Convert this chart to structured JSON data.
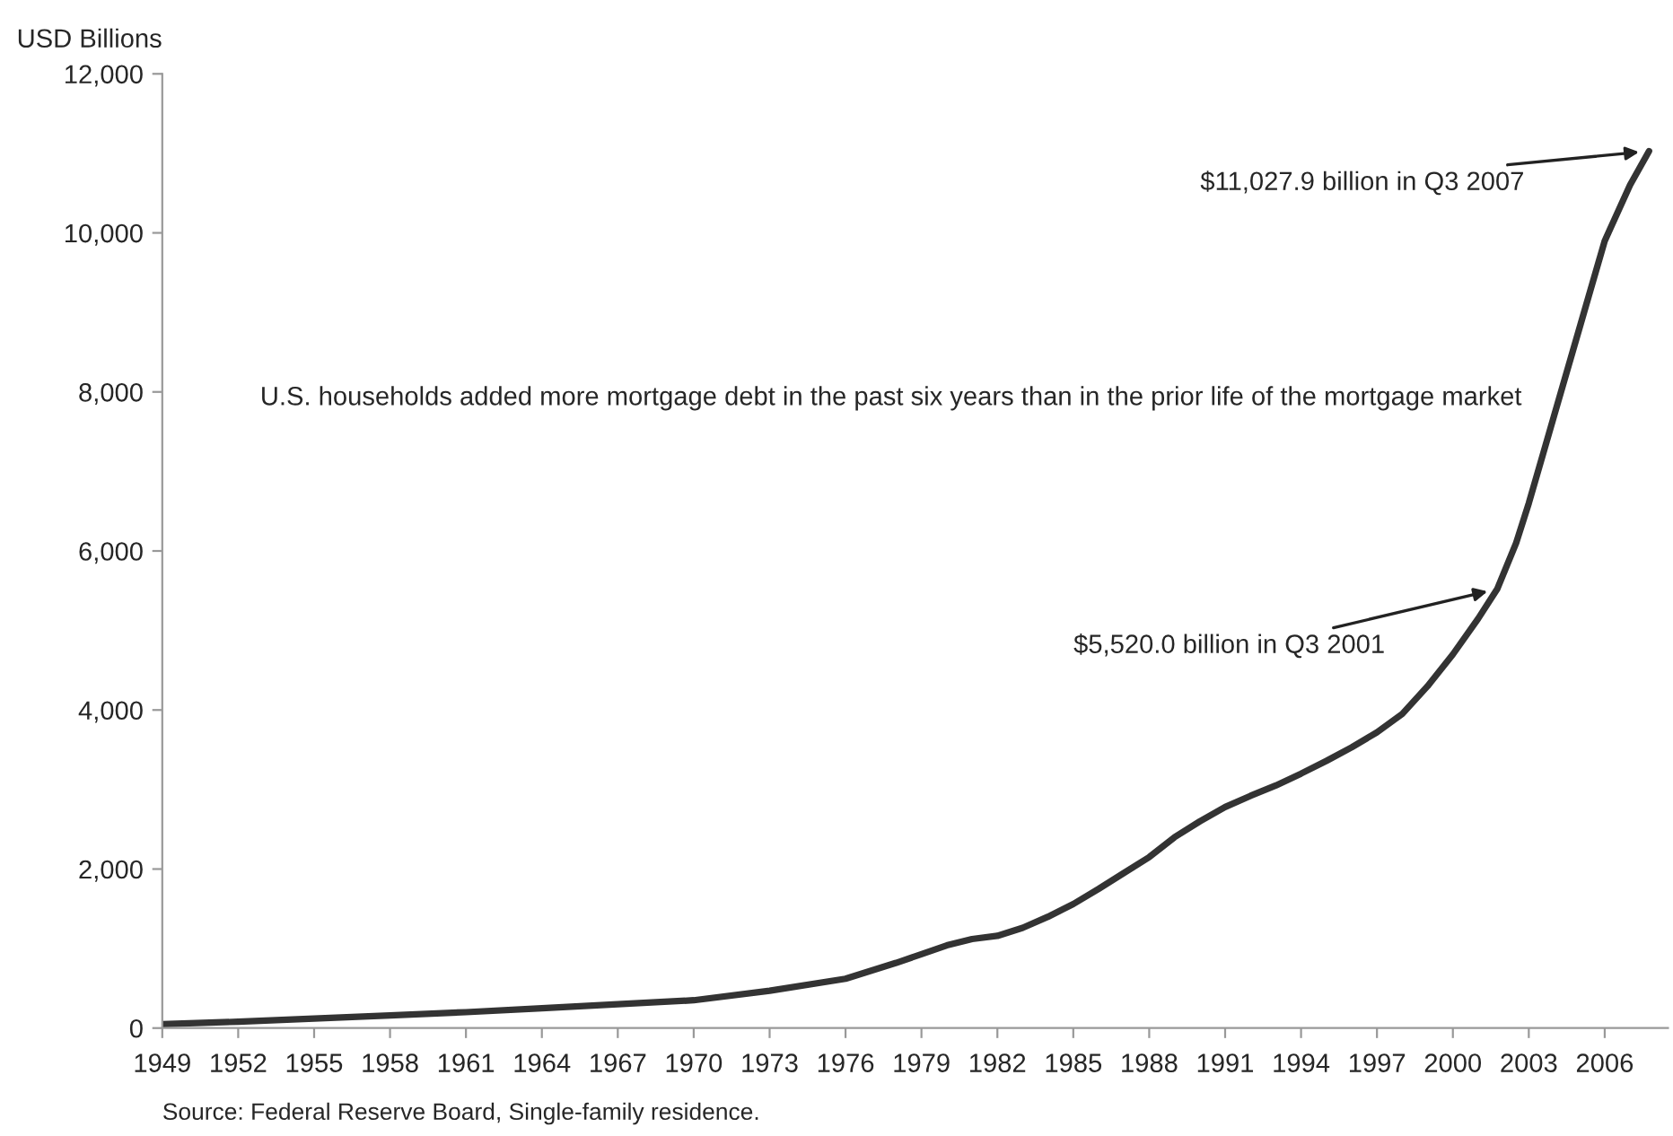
{
  "chart_data": {
    "type": "line",
    "ylabel": "USD Billions",
    "x": [
      1949,
      1952,
      1955,
      1958,
      1961,
      1964,
      1967,
      1970,
      1973,
      1976,
      1978,
      1979,
      1980,
      1981,
      1982,
      1983,
      1984,
      1985,
      1986,
      1987,
      1988,
      1989,
      1990,
      1991,
      1992,
      1993,
      1994,
      1995,
      1996,
      1997,
      1998,
      1999,
      2000,
      2001,
      2001.75,
      2002.5,
      2003,
      2004,
      2005,
      2006,
      2007,
      2007.75
    ],
    "series": [
      {
        "color": "#333333",
        "values": [
          50,
          80,
          120,
          160,
          200,
          250,
          300,
          350,
          470,
          620,
          820,
          930,
          1040,
          1120,
          1160,
          1260,
          1400,
          1560,
          1750,
          1950,
          2150,
          2400,
          2600,
          2780,
          2920,
          3050,
          3200,
          3360,
          3530,
          3720,
          3950,
          4300,
          4700,
          5150,
          5520,
          6100,
          6600,
          7700,
          8800,
          9900,
          10600,
          11027.9
        ]
      }
    ],
    "xlim": [
      1949,
      2008.5
    ],
    "xticks": [
      1949,
      1952,
      1955,
      1958,
      1961,
      1964,
      1967,
      1970,
      1973,
      1976,
      1979,
      1982,
      1985,
      1988,
      1991,
      1994,
      1997,
      2000,
      2003,
      2006
    ],
    "ylim": [
      0,
      12000
    ],
    "yticks": [
      {
        "value": 0,
        "label": "0"
      },
      {
        "value": 2000,
        "label": "2,000"
      },
      {
        "value": 4000,
        "label": "4,000"
      },
      {
        "value": 6000,
        "label": "6,000"
      },
      {
        "value": 8000,
        "label": "8,000"
      },
      {
        "value": 10000,
        "label": "10,000"
      },
      {
        "value": 12000,
        "label": "12,000"
      }
    ],
    "grid": false,
    "legend": false,
    "marker": "none",
    "line_style": "solid",
    "annotations": [
      {
        "text": "$11,027.9 billion in Q3 2007",
        "x": 2007.75,
        "y": 11027.9
      },
      {
        "text": "$5,520.0 billion in Q3 2001",
        "x": 2001.75,
        "y": 5520
      },
      "U.S. households added more mortgage debt in the past six years than in the prior life of the mortgage market",
      "Source: Federal Reserve Board, Single-family residence."
    ]
  }
}
